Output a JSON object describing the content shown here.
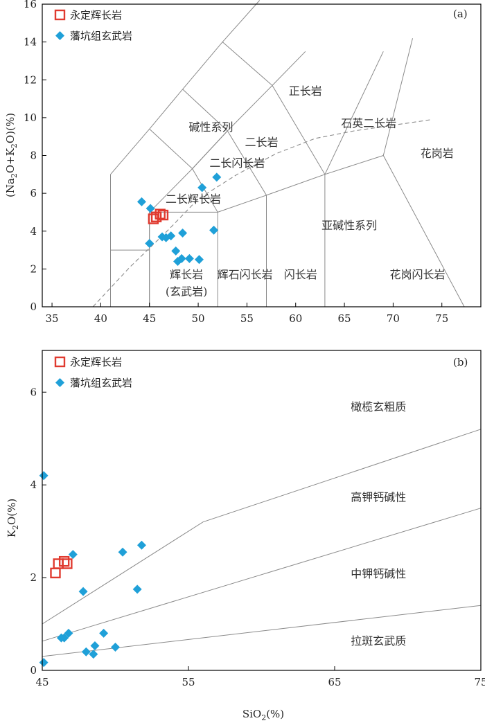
{
  "chart_data": [
    {
      "type": "scatter",
      "panel_label": "(a)",
      "ylabel_parts": [
        "(Na",
        "2",
        "O+K",
        "2",
        "O)(%)"
      ],
      "xlim": [
        34,
        79
      ],
      "ylim": [
        0,
        16
      ],
      "xticks": [
        35,
        40,
        45,
        50,
        55,
        60,
        65,
        70,
        75
      ],
      "yticks": [
        0,
        2,
        4,
        6,
        8,
        10,
        12,
        14,
        16
      ],
      "legend": {
        "placement": "top-left",
        "entries": [
          "永定辉长岩",
          "藩坑组玄武岩"
        ]
      },
      "series": [
        {
          "name": "永定辉长岩",
          "marker": "open-square",
          "color": "#e03a2f",
          "points": [
            [
              45.4,
              4.65
            ],
            [
              45.7,
              4.75
            ],
            [
              46.1,
              4.9
            ],
            [
              46.4,
              4.85
            ]
          ]
        },
        {
          "name": "藩坑组玄武岩",
          "marker": "diamond",
          "color": "#1fa0d8",
          "points": [
            [
              44.2,
              5.55
            ],
            [
              45.1,
              5.2
            ],
            [
              45.0,
              3.35
            ],
            [
              46.3,
              3.7
            ],
            [
              46.7,
              3.65
            ],
            [
              47.2,
              3.75
            ],
            [
              48.4,
              3.9
            ],
            [
              47.7,
              2.95
            ],
            [
              47.9,
              2.4
            ],
            [
              48.3,
              2.55
            ],
            [
              49.1,
              2.55
            ],
            [
              50.1,
              2.5
            ],
            [
              50.4,
              6.3
            ],
            [
              51.9,
              6.85
            ],
            [
              51.6,
              4.05
            ]
          ]
        }
      ],
      "boundaries": [
        [
          [
            41,
            0
          ],
          [
            41,
            3
          ],
          [
            41,
            7
          ]
        ],
        [
          [
            41,
            7
          ],
          [
            45,
            9.4
          ],
          [
            48.4,
            11.5
          ],
          [
            52.5,
            14
          ],
          [
            56.3,
            16.2
          ]
        ],
        [
          [
            41,
            3
          ],
          [
            45,
            3
          ],
          [
            45,
            0
          ]
        ],
        [
          [
            45,
            0
          ],
          [
            45,
            5
          ],
          [
            52,
            5
          ],
          [
            52,
            0
          ]
        ],
        [
          [
            52,
            0
          ],
          [
            57,
            0
          ],
          [
            63,
            0
          ],
          [
            71.8,
            0
          ],
          [
            77.3,
            0
          ]
        ],
        [
          [
            57,
            0
          ],
          [
            57,
            5.9
          ]
        ],
        [
          [
            63,
            0
          ],
          [
            63,
            7
          ]
        ],
        [
          [
            77.3,
            0
          ],
          [
            69,
            8
          ],
          [
            72,
            14.2
          ]
        ],
        [
          [
            45,
            3
          ],
          [
            45,
            5
          ],
          [
            49.4,
            7.3
          ],
          [
            53,
            9.3
          ],
          [
            57.6,
            11.7
          ],
          [
            61,
            13.5
          ]
        ],
        [
          [
            52,
            5
          ],
          [
            57,
            5.9
          ],
          [
            63,
            7
          ],
          [
            69,
            8
          ]
        ],
        [
          [
            49.4,
            7.3
          ],
          [
            53,
            9.3
          ]
        ],
        [
          [
            52,
            5
          ],
          [
            49.4,
            7.3
          ],
          [
            45,
            9.4
          ]
        ],
        [
          [
            57,
            5.9
          ],
          [
            53,
            9.3
          ],
          [
            48.4,
            11.5
          ]
        ],
        [
          [
            63,
            7
          ],
          [
            57.6,
            11.7
          ],
          [
            52.5,
            14
          ]
        ],
        [
          [
            63,
            7
          ],
          [
            69,
            13.5
          ]
        ]
      ],
      "alkaline_divide": [
        [
          39.2,
          0
        ],
        [
          43,
          2.1
        ],
        [
          47,
          4.1
        ],
        [
          50,
          5.7
        ],
        [
          54,
          7.0
        ],
        [
          58,
          8.1
        ],
        [
          62,
          8.9
        ],
        [
          66,
          9.3
        ],
        [
          70,
          9.6
        ],
        [
          74,
          9.9
        ]
      ],
      "regions": [
        {
          "label": "正长岩",
          "x": 61,
          "y": 11.2
        },
        {
          "label": "石英二长岩",
          "x": 67.5,
          "y": 9.5
        },
        {
          "label": "碱性系列",
          "x": 51.3,
          "y": 9.3
        },
        {
          "label": "二长岩",
          "x": 56.5,
          "y": 8.5
        },
        {
          "label": "二长闪长岩",
          "x": 54.0,
          "y": 7.4
        },
        {
          "label": "花岗岩",
          "x": 74.5,
          "y": 7.9
        },
        {
          "label": "二长辉长岩",
          "x": 49.5,
          "y": 5.5
        },
        {
          "label": "亚碱性系列",
          "x": 65.5,
          "y": 4.1
        },
        {
          "label": "辉长岩",
          "x": 48.8,
          "y": 1.5
        },
        {
          "label": "(玄武岩)",
          "x": 48.8,
          "y": 0.6
        },
        {
          "label": "辉石闪长岩",
          "x": 54.8,
          "y": 1.5
        },
        {
          "label": "闪长岩",
          "x": 60.5,
          "y": 1.5
        },
        {
          "label": "花岗闪长岩",
          "x": 72.5,
          "y": 1.5
        }
      ]
    },
    {
      "type": "scatter",
      "panel_label": "(b)",
      "xlabel_parts": [
        "SiO",
        "2",
        "(%)"
      ],
      "ylabel_parts": [
        "K",
        "2",
        "O(%)"
      ],
      "xlim": [
        45,
        75
      ],
      "ylim": [
        0,
        6.9
      ],
      "xticks": [
        45,
        55,
        65,
        75
      ],
      "yticks": [
        0,
        2,
        4,
        6
      ],
      "legend": {
        "placement": "top-left",
        "entries": [
          "永定辉长岩",
          "藩坑组玄武岩"
        ]
      },
      "series": [
        {
          "name": "永定辉长岩",
          "marker": "open-square",
          "color": "#e03a2f",
          "points": [
            [
              45.9,
              2.1
            ],
            [
              46.1,
              2.3
            ],
            [
              46.5,
              2.35
            ],
            [
              46.7,
              2.3
            ]
          ]
        },
        {
          "name": "藩坑组玄武岩",
          "marker": "diamond",
          "color": "#1fa0d8",
          "points": [
            [
              45.1,
              4.2
            ],
            [
              45.1,
              0.17
            ],
            [
              46.3,
              0.7
            ],
            [
              46.5,
              0.7
            ],
            [
              46.8,
              0.8
            ],
            [
              47.1,
              2.5
            ],
            [
              47.8,
              1.7
            ],
            [
              48.0,
              0.4
            ],
            [
              48.5,
              0.35
            ],
            [
              48.6,
              0.53
            ],
            [
              49.2,
              0.8
            ],
            [
              50.0,
              0.5
            ],
            [
              50.5,
              2.55
            ],
            [
              51.5,
              1.75
            ],
            [
              51.8,
              2.7
            ]
          ]
        }
      ],
      "boundaries": [
        [
          [
            45,
            1.0
          ],
          [
            56,
            3.2
          ],
          [
            75,
            5.2
          ]
        ],
        [
          [
            45,
            0.63
          ],
          [
            75,
            3.5
          ]
        ],
        [
          [
            45,
            0.3
          ],
          [
            75,
            1.4
          ]
        ]
      ],
      "regions": [
        {
          "label": "橄榄玄粗质",
          "x": 68,
          "y": 5.6
        },
        {
          "label": "高钾钙碱性",
          "x": 68,
          "y": 3.65
        },
        {
          "label": "中钾钙碱性",
          "x": 68,
          "y": 2.0
        },
        {
          "label": "拉斑玄武质",
          "x": 68,
          "y": 0.55
        }
      ]
    }
  ]
}
